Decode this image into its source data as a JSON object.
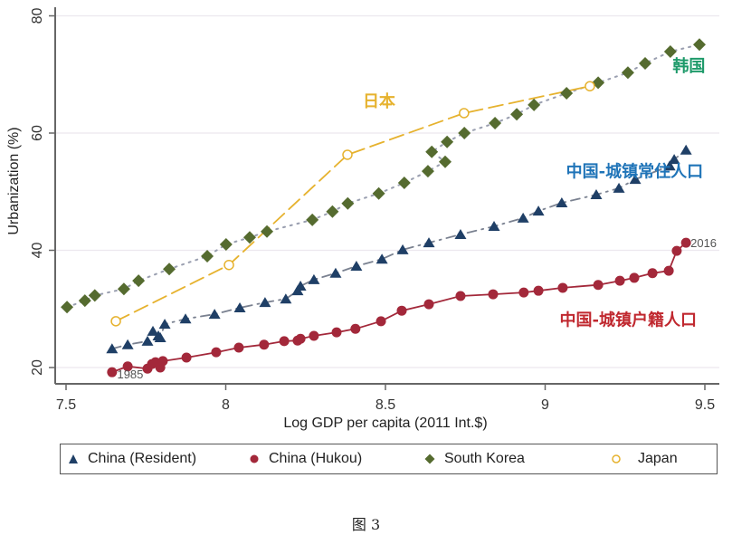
{
  "chart_data": {
    "type": "scatter",
    "title": "",
    "xlabel": "Log GDP per capita (2011 Int.$)",
    "ylabel": "Urbanization (%)",
    "xlim": [
      7.48,
      9.52
    ],
    "ylim": [
      17.5,
      81
    ],
    "xticks": [
      7.5,
      8,
      8.5,
      9,
      9.5
    ],
    "xtick_labels": [
      "7.5",
      "8",
      "8.5",
      "9",
      "9.5"
    ],
    "yticks": [
      20,
      40,
      60,
      80
    ],
    "ytick_labels": [
      "20",
      "40",
      "60",
      "80"
    ],
    "grid": "horizontal",
    "legend_position": "bottom",
    "series": [
      {
        "name": "China (Resident)",
        "marker": "triangle",
        "line": "dash-dot",
        "color": "#1f3f66",
        "points": [
          [
            7.644,
            23.2
          ],
          [
            7.693,
            23.9
          ],
          [
            7.755,
            24.5
          ],
          [
            7.772,
            26.2
          ],
          [
            7.789,
            25.4
          ],
          [
            7.795,
            25.1
          ],
          [
            7.809,
            27.4
          ],
          [
            7.874,
            28.3
          ],
          [
            7.965,
            29.1
          ],
          [
            8.044,
            30.2
          ],
          [
            8.123,
            31.1
          ],
          [
            8.188,
            31.7
          ],
          [
            8.225,
            33.1
          ],
          [
            8.234,
            33.9
          ],
          [
            8.276,
            35.0
          ],
          [
            8.344,
            36.1
          ],
          [
            8.409,
            37.3
          ],
          [
            8.489,
            38.5
          ],
          [
            8.554,
            40.1
          ],
          [
            8.636,
            41.3
          ],
          [
            8.735,
            42.7
          ],
          [
            8.84,
            44.1
          ],
          [
            8.931,
            45.5
          ],
          [
            8.979,
            46.7
          ],
          [
            9.052,
            48.1
          ],
          [
            9.16,
            49.5
          ],
          [
            9.231,
            50.6
          ],
          [
            9.282,
            52.1
          ],
          [
            9.39,
            54.4
          ],
          [
            9.404,
            55.5
          ],
          [
            9.441,
            57.1
          ]
        ]
      },
      {
        "name": "China (Hukou)",
        "marker": "circle",
        "line": "solid",
        "color": "#a3283a",
        "points": [
          [
            7.644,
            19.2
          ],
          [
            7.693,
            20.2
          ],
          [
            7.755,
            19.8
          ],
          [
            7.769,
            20.6
          ],
          [
            7.78,
            20.9
          ],
          [
            7.795,
            20.0
          ],
          [
            7.803,
            21.1
          ],
          [
            7.877,
            21.7
          ],
          [
            7.97,
            22.6
          ],
          [
            8.041,
            23.4
          ],
          [
            8.12,
            23.9
          ],
          [
            8.183,
            24.5
          ],
          [
            8.225,
            24.6
          ],
          [
            8.234,
            24.9
          ],
          [
            8.276,
            25.4
          ],
          [
            8.347,
            26.0
          ],
          [
            8.406,
            26.6
          ],
          [
            8.486,
            27.9
          ],
          [
            8.551,
            29.7
          ],
          [
            8.636,
            30.8
          ],
          [
            8.735,
            32.2
          ],
          [
            8.837,
            32.5
          ],
          [
            8.933,
            32.8
          ],
          [
            8.979,
            33.1
          ],
          [
            9.055,
            33.6
          ],
          [
            9.166,
            34.1
          ],
          [
            9.234,
            34.8
          ],
          [
            9.279,
            35.3
          ],
          [
            9.336,
            36.1
          ],
          [
            9.387,
            36.5
          ],
          [
            9.412,
            39.9
          ],
          [
            9.441,
            41.3
          ]
        ]
      },
      {
        "name": "South Korea",
        "marker": "diamond",
        "line": "dotted",
        "color": "#556b2f",
        "points": [
          [
            7.503,
            30.3
          ],
          [
            7.559,
            31.4
          ],
          [
            7.59,
            32.3
          ],
          [
            7.681,
            33.4
          ],
          [
            7.727,
            34.8
          ],
          [
            7.823,
            36.8
          ],
          [
            7.942,
            39.0
          ],
          [
            8.001,
            41.0
          ],
          [
            8.075,
            42.2
          ],
          [
            8.129,
            43.2
          ],
          [
            8.271,
            45.2
          ],
          [
            8.334,
            46.6
          ],
          [
            8.382,
            48.0
          ],
          [
            8.479,
            49.7
          ],
          [
            8.559,
            51.5
          ],
          [
            8.633,
            53.5
          ],
          [
            8.687,
            55.1
          ],
          [
            8.645,
            56.8
          ],
          [
            8.693,
            58.5
          ],
          [
            8.747,
            60.0
          ],
          [
            8.843,
            61.7
          ],
          [
            8.911,
            63.2
          ],
          [
            8.965,
            64.8
          ],
          [
            9.067,
            66.8
          ],
          [
            9.166,
            68.6
          ],
          [
            9.259,
            70.3
          ],
          [
            9.313,
            71.9
          ],
          [
            9.392,
            73.9
          ],
          [
            9.483,
            75.1
          ]
        ]
      },
      {
        "name": "Japan",
        "marker": "hollow-circle",
        "line": "long-dash",
        "color": "#e6b22e",
        "points": [
          [
            7.656,
            27.9
          ],
          [
            8.01,
            37.5
          ],
          [
            8.381,
            56.3
          ],
          [
            8.746,
            63.4
          ],
          [
            9.14,
            68.0
          ]
        ]
      }
    ],
    "annotations": [
      {
        "text": "日本",
        "color": "#e6b22e",
        "x": 8.48,
        "y": 64.5
      },
      {
        "text": "韩国",
        "color": "#1e9a6a",
        "x": 9.45,
        "y": 70.5
      },
      {
        "text": "中国-城镇常住人口",
        "color": "#1f74b8",
        "x": 9.28,
        "y": 52.5
      },
      {
        "text": "中国-城镇户籍人口",
        "color": "#c0282f",
        "x": 9.26,
        "y": 27.2
      },
      {
        "text": "1985",
        "color": "#666666",
        "x": 7.66,
        "y": 18.9,
        "anchor": "start"
      },
      {
        "text": "2016",
        "color": "#555555",
        "x": 9.455,
        "y": 41.3,
        "anchor": "start"
      }
    ]
  },
  "legend": {
    "items": [
      {
        "label": "China (Resident)"
      },
      {
        "label": "China (Hukou)"
      },
      {
        "label": "South Korea"
      },
      {
        "label": "Japan"
      }
    ]
  },
  "caption": "图 3"
}
